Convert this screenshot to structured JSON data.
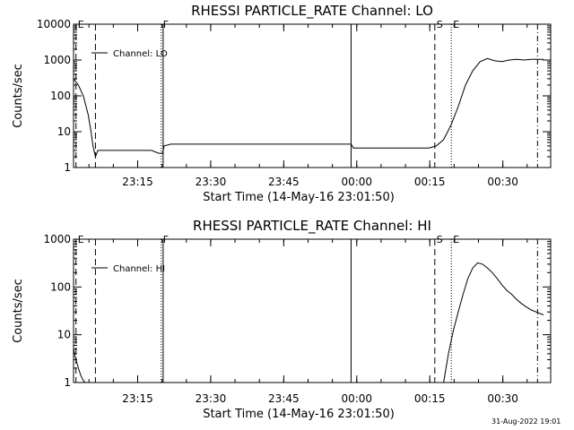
{
  "footer": {
    "timestamp": "31-Aug-2022 19:01"
  },
  "chart_data": [
    {
      "type": "line",
      "title": "RHESSI PARTICLE_RATE Channel: LO",
      "xlabel": "Start Time (14-May-16 23:01:50)",
      "ylabel": "Counts/sec",
      "yscale": "log",
      "xlim": [
        0,
        98
      ],
      "ylim": [
        1,
        10000
      ],
      "x_unit": "minutes after 23:01:50",
      "yticks": [
        1,
        10,
        100,
        1000,
        10000
      ],
      "ytick_labels": [
        "1",
        "10",
        "100",
        "1000",
        "10000"
      ],
      "xticks": [
        13.17,
        28.17,
        43.17,
        58.17,
        73.17,
        88.17
      ],
      "xtick_labels": [
        "23:15",
        "23:30",
        "23:45",
        "00:00",
        "00:15",
        "00:30"
      ],
      "legend": {
        "position": "top-left",
        "entries": [
          "Channel: LO"
        ]
      },
      "markers": [
        {
          "label": "E",
          "x": 0.5,
          "style": "dash"
        },
        {
          "label": "",
          "x": 4.5,
          "style": "dash"
        },
        {
          "label": "F",
          "x": 18.0,
          "style": "dot"
        },
        {
          "label": "",
          "x": 18.4,
          "style": "solid"
        },
        {
          "label": "",
          "x": 57.0,
          "style": "solid"
        },
        {
          "label": "S",
          "x": 74.2,
          "style": "dash"
        },
        {
          "label": "E",
          "x": 77.6,
          "style": "dot"
        },
        {
          "label": "",
          "x": 95.3,
          "style": "dashdot"
        }
      ],
      "series": [
        {
          "name": "Channel: LO",
          "x": [
            0,
            1,
            2,
            3,
            3.6,
            4,
            4.5,
            5,
            6,
            8,
            10,
            12,
            14,
            16,
            17.5,
            18.3,
            18.6,
            20,
            25,
            30,
            35,
            40,
            45,
            50,
            55,
            57,
            57.5,
            60,
            65,
            70,
            73,
            74.5,
            76,
            77.5,
            79,
            80.5,
            82,
            83.5,
            85,
            86.5,
            88,
            89.5,
            91,
            92.5,
            94,
            95.5,
            96.5
          ],
          "y": [
            300,
            200,
            100,
            30,
            10,
            4,
            2,
            3,
            3,
            3,
            3,
            3,
            3,
            3,
            2.5,
            2.5,
            4,
            4.5,
            4.5,
            4.5,
            4.5,
            4.5,
            4.5,
            4.5,
            4.5,
            4.5,
            3.5,
            3.5,
            3.5,
            3.5,
            3.5,
            4,
            6,
            15,
            50,
            200,
            500,
            900,
            1100,
            950,
            900,
            1000,
            1050,
            1000,
            1050,
            1050,
            1050
          ]
        }
      ]
    },
    {
      "type": "line",
      "title": "RHESSI PARTICLE_RATE Channel: HI",
      "xlabel": "Start Time (14-May-16 23:01:50)",
      "ylabel": "Counts/sec",
      "yscale": "log",
      "xlim": [
        0,
        98
      ],
      "ylim": [
        1,
        1000
      ],
      "x_unit": "minutes after 23:01:50",
      "yticks": [
        1,
        10,
        100,
        1000
      ],
      "ytick_labels": [
        "1",
        "10",
        "100",
        "1000"
      ],
      "xticks": [
        13.17,
        28.17,
        43.17,
        58.17,
        73.17,
        88.17
      ],
      "xtick_labels": [
        "23:15",
        "23:30",
        "23:45",
        "00:00",
        "00:15",
        "00:30"
      ],
      "legend": {
        "position": "top-left",
        "entries": [
          "Channel: HI"
        ]
      },
      "markers": [
        {
          "label": "E",
          "x": 0.5,
          "style": "dash"
        },
        {
          "label": "",
          "x": 4.5,
          "style": "dash"
        },
        {
          "label": "F",
          "x": 18.0,
          "style": "dot"
        },
        {
          "label": "",
          "x": 18.4,
          "style": "solid"
        },
        {
          "label": "",
          "x": 57.0,
          "style": "solid"
        },
        {
          "label": "S",
          "x": 74.2,
          "style": "dash"
        },
        {
          "label": "E",
          "x": 77.6,
          "style": "dot"
        },
        {
          "label": "",
          "x": 95.3,
          "style": "dashdot"
        }
      ],
      "series": [
        {
          "name": "Channel: HI",
          "x": [
            0,
            0.5,
            1,
            1.5,
            2,
            2.4,
            76,
            77,
            78,
            79,
            80,
            81,
            82,
            83,
            84,
            85,
            86,
            87,
            88,
            89,
            90,
            91,
            92,
            93,
            94,
            95,
            96.5
          ],
          "y": [
            5,
            3,
            2,
            1.4,
            1.1,
            1,
            1,
            4,
            12,
            30,
            70,
            150,
            250,
            320,
            300,
            250,
            200,
            150,
            110,
            85,
            70,
            55,
            45,
            38,
            33,
            30,
            26
          ]
        }
      ]
    }
  ]
}
